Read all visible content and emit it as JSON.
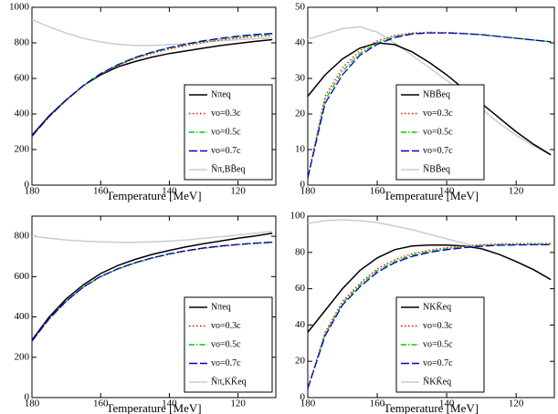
{
  "chart_data": [
    {
      "type": "line",
      "x_label": "Temperature [MeV]",
      "xlim": [
        180,
        109
      ],
      "xticks": [
        180,
        160,
        140,
        120
      ],
      "ylim": [
        0,
        1000
      ],
      "yticks": [
        0,
        200,
        400,
        600,
        800,
        1000
      ],
      "legend": "lower right",
      "x": [
        180,
        175,
        170,
        165,
        160,
        155,
        150,
        145,
        140,
        135,
        130,
        125,
        120,
        115,
        110
      ],
      "series": [
        {
          "name": "Nπeq",
          "color": "#000000",
          "dash": "solid",
          "values": [
            280,
            390,
            480,
            560,
            620,
            665,
            695,
            720,
            740,
            755,
            770,
            785,
            797,
            808,
            818
          ]
        },
        {
          "name": "vo=0.3c",
          "color": "#ff0000",
          "dash": "dotted",
          "values": [
            275,
            384,
            476,
            558,
            623,
            672,
            712,
            741,
            765,
            785,
            802,
            816,
            827,
            836,
            842
          ]
        },
        {
          "name": "vo=0.5c",
          "color": "#00cc00",
          "dash": "dashdot",
          "values": [
            275,
            385,
            478,
            560,
            625,
            675,
            715,
            745,
            770,
            790,
            808,
            822,
            833,
            842,
            848
          ]
        },
        {
          "name": "vo=0.7c",
          "color": "#0000cc",
          "dash": "dashed",
          "values": [
            275,
            386,
            479,
            561,
            627,
            677,
            718,
            748,
            773,
            794,
            812,
            826,
            838,
            847,
            853
          ]
        },
        {
          "name": "N̄π,BB̄eq",
          "color": "#cccccc",
          "dash": "solid",
          "values": [
            930,
            890,
            855,
            825,
            805,
            792,
            785,
            785,
            790,
            797,
            805,
            812,
            818,
            823,
            828
          ]
        }
      ]
    },
    {
      "type": "line",
      "x_label": "Temperature [MeV]",
      "xlim": [
        180,
        109
      ],
      "xticks": [
        180,
        160,
        140,
        120
      ],
      "ylim": [
        0,
        50
      ],
      "yticks": [
        0,
        10,
        20,
        30,
        40,
        50
      ],
      "legend": "lower center",
      "x": [
        180,
        175,
        170,
        165,
        160,
        155,
        150,
        145,
        140,
        135,
        130,
        125,
        120,
        115,
        110
      ],
      "series": [
        {
          "name": "NBB̄eq",
          "color": "#000000",
          "dash": "solid",
          "values": [
            25,
            31,
            35.5,
            38.5,
            40,
            39.5,
            37.5,
            34.5,
            31,
            27,
            23,
            19,
            15,
            11.5,
            8.5
          ]
        },
        {
          "name": "vo=0.3c",
          "color": "#ff0000",
          "dash": "dotted",
          "values": [
            2,
            25,
            33,
            37.8,
            40.5,
            42.1,
            42.8,
            43,
            42.9,
            42.7,
            42.3,
            41.8,
            41.3,
            40.8,
            40.3
          ]
        },
        {
          "name": "vo=0.5c",
          "color": "#00cc00",
          "dash": "dashdot",
          "values": [
            2,
            24,
            32,
            37,
            40,
            41.8,
            42.6,
            42.8,
            42.8,
            42.6,
            42.3,
            41.8,
            41.3,
            40.8,
            40.3
          ]
        },
        {
          "name": "vo=0.7c",
          "color": "#0000cc",
          "dash": "dashed",
          "values": [
            2,
            23,
            31,
            36.5,
            39.6,
            41.5,
            42.5,
            42.8,
            42.8,
            42.6,
            42.3,
            41.8,
            41.3,
            40.8,
            40.3
          ]
        },
        {
          "name": "N̄BB̄eq",
          "color": "#cccccc",
          "dash": "solid",
          "values": [
            41,
            42.5,
            44,
            44.5,
            43,
            40,
            36.5,
            33,
            29.5,
            25.5,
            21.5,
            17.5,
            14,
            11,
            8.5
          ]
        }
      ]
    },
    {
      "type": "line",
      "x_label": "Temperature [MeV]",
      "xlim": [
        180,
        109
      ],
      "xticks": [
        180,
        160,
        140,
        120
      ],
      "ylim": [
        0,
        900
      ],
      "yticks": [
        0,
        200,
        400,
        600,
        800
      ],
      "legend": "lower right",
      "x": [
        180,
        175,
        170,
        165,
        160,
        155,
        150,
        145,
        140,
        135,
        130,
        125,
        120,
        115,
        110
      ],
      "series": [
        {
          "name": "Nπeq",
          "color": "#000000",
          "dash": "solid",
          "values": [
            285,
            400,
            490,
            560,
            615,
            655,
            685,
            710,
            730,
            748,
            763,
            777,
            790,
            802,
            815
          ]
        },
        {
          "name": "vo=0.3c",
          "color": "#ff0000",
          "dash": "dotted",
          "values": [
            280,
            389,
            477,
            547,
            599,
            637,
            667,
            691,
            711,
            727,
            740,
            750,
            758,
            764,
            769
          ]
        },
        {
          "name": "vo=0.5c",
          "color": "#00cc00",
          "dash": "dashdot",
          "values": [
            280,
            390,
            478,
            548,
            600,
            638,
            668,
            692,
            712,
            728,
            741,
            751,
            759,
            765,
            770
          ]
        },
        {
          "name": "vo=0.7c",
          "color": "#0000cc",
          "dash": "dashed",
          "values": [
            280,
            391,
            479,
            549,
            601,
            639,
            669,
            693,
            713,
            729,
            742,
            752,
            760,
            766,
            771
          ]
        },
        {
          "name": "N̄π,KK̄eq",
          "color": "#cccccc",
          "dash": "solid",
          "values": [
            800,
            790,
            782,
            776,
            772,
            770,
            770,
            772,
            776,
            782,
            790,
            798,
            806,
            815,
            825
          ]
        }
      ]
    },
    {
      "type": "line",
      "x_label": "Temperature [MeV]",
      "xlim": [
        180,
        109
      ],
      "xticks": [
        180,
        160,
        140,
        120
      ],
      "ylim": [
        0,
        100
      ],
      "yticks": [
        0,
        20,
        40,
        60,
        80,
        100
      ],
      "legend": "lower center",
      "x": [
        180,
        175,
        170,
        165,
        160,
        155,
        150,
        145,
        140,
        135,
        130,
        125,
        120,
        115,
        110
      ],
      "series": [
        {
          "name": "NKK̄eq",
          "color": "#000000",
          "dash": "solid",
          "values": [
            36,
            48,
            60,
            70,
            77,
            81.5,
            83.5,
            84,
            84,
            83.5,
            82,
            79,
            75,
            70.5,
            65
          ]
        },
        {
          "name": "vo=0.3c",
          "color": "#ff0000",
          "dash": "dotted",
          "values": [
            5,
            36,
            53,
            63,
            71,
            76,
            79.3,
            81.2,
            82.6,
            83.5,
            84.2,
            84.6,
            84.8,
            84.9,
            84.9
          ]
        },
        {
          "name": "vo=0.5c",
          "color": "#00cc00",
          "dash": "dashdot",
          "values": [
            5,
            35,
            52,
            62,
            70,
            75,
            78.5,
            80.5,
            82,
            83,
            83.8,
            84.2,
            84.4,
            84.5,
            84.5
          ]
        },
        {
          "name": "vo=0.7c",
          "color": "#0000cc",
          "dash": "dashed",
          "values": [
            5,
            34,
            51,
            61,
            69,
            74.3,
            77.8,
            80,
            81.5,
            82.6,
            83.4,
            83.9,
            84.1,
            84.2,
            84.2
          ]
        },
        {
          "name": "N̄KK̄eq",
          "color": "#cccccc",
          "dash": "solid",
          "values": [
            96,
            97.5,
            98,
            97.5,
            96.5,
            94.5,
            92.5,
            90,
            87.5,
            85,
            82.5,
            79,
            75,
            70.5,
            65
          ]
        }
      ]
    }
  ]
}
